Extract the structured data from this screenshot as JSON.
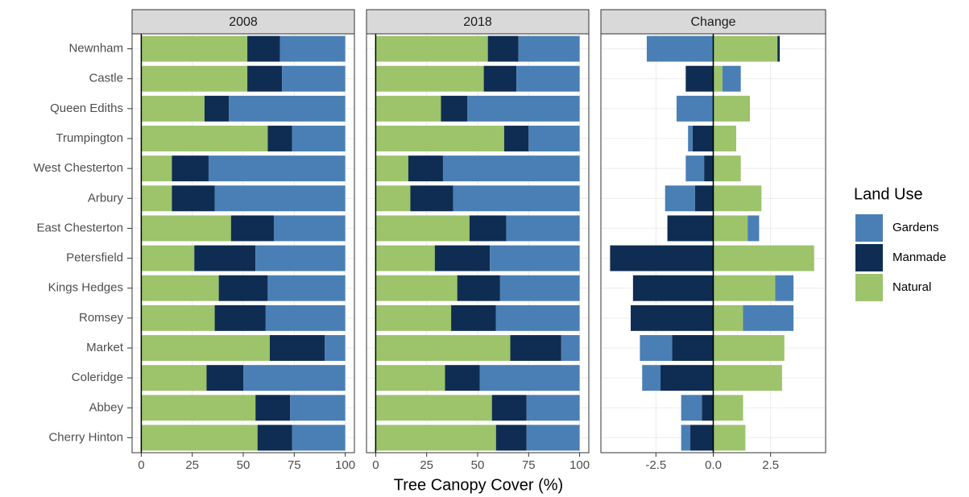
{
  "chart_data": {
    "type": "bar",
    "orientation": "horizontal",
    "stacked": true,
    "xlabel": "Tree Canopy Cover (%)",
    "legend_title": "Land Use",
    "grid": true,
    "categories": [
      "Newnham",
      "Castle",
      "Queen Ediths",
      "Trumpington",
      "West Chesterton",
      "Arbury",
      "East Chesterton",
      "Petersfield",
      "Kings Hedges",
      "Romsey",
      "Market",
      "Coleridge",
      "Abbey",
      "Cherry Hinton"
    ],
    "facets": [
      {
        "title": "2008",
        "xlim": [
          -4.5,
          104.5
        ],
        "xticks": [
          0,
          25,
          50,
          75,
          100
        ],
        "series": [
          {
            "name": "Gardens",
            "color": "#4a7fb5",
            "values": [
              32,
              31,
              57,
              26,
              67,
              64,
              35,
              44,
              38,
              39,
              10,
              50,
              27,
              26
            ]
          },
          {
            "name": "Manmade",
            "color": "#0f2d52",
            "values": [
              16,
              17,
              12,
              12,
              18,
              21,
              21,
              30,
              24,
              25,
              27,
              18,
              17,
              17
            ]
          },
          {
            "name": "Natural",
            "color": "#9dc36b",
            "values": [
              52,
              52,
              31,
              62,
              15,
              15,
              44,
              26,
              38,
              36,
              63,
              32,
              56,
              57
            ]
          }
        ]
      },
      {
        "title": "2018",
        "xlim": [
          -4.5,
          104.5
        ],
        "xticks": [
          0,
          25,
          50,
          75,
          100
        ],
        "series": [
          {
            "name": "Gardens",
            "color": "#4a7fb5",
            "values": [
              30,
              31,
              55,
              25,
              67,
              62,
              36,
              44,
              39,
              41,
              9,
              49,
              26,
              26
            ]
          },
          {
            "name": "Manmade",
            "color": "#0f2d52",
            "values": [
              15,
              16,
              13,
              12,
              17,
              21,
              18,
              27,
              21,
              22,
              25,
              17,
              17,
              15
            ]
          },
          {
            "name": "Natural",
            "color": "#9dc36b",
            "values": [
              55,
              53,
              32,
              63,
              16,
              17,
              46,
              29,
              40,
              37,
              66,
              34,
              57,
              59
            ]
          }
        ]
      },
      {
        "title": "Change",
        "xlim": [
          -4.9,
          4.9
        ],
        "xticks": [
          -2.5,
          {
            "value": 0,
            "label": "0.0"
          },
          2.5
        ],
        "series": [
          {
            "name": "Gardens",
            "color": "#4a7fb5",
            "values": [
              -2.9,
              0.8,
              -1.6,
              -0.2,
              -0.8,
              -1.3,
              0.5,
              0,
              0.8,
              2.2,
              -1.4,
              -0.8,
              -0.9,
              -0.4
            ]
          },
          {
            "name": "Manmade",
            "color": "#0f2d52",
            "values": [
              0.1,
              -1.2,
              0,
              -0.9,
              -0.4,
              -0.8,
              -2.0,
              -4.5,
              -3.5,
              -3.6,
              -1.8,
              -2.3,
              -0.5,
              -1.0
            ]
          },
          {
            "name": "Natural",
            "color": "#9dc36b",
            "values": [
              2.8,
              0.4,
              1.6,
              1.0,
              1.2,
              2.1,
              1.5,
              4.4,
              2.7,
              1.3,
              3.1,
              3.0,
              1.3,
              1.4
            ]
          }
        ]
      }
    ]
  }
}
